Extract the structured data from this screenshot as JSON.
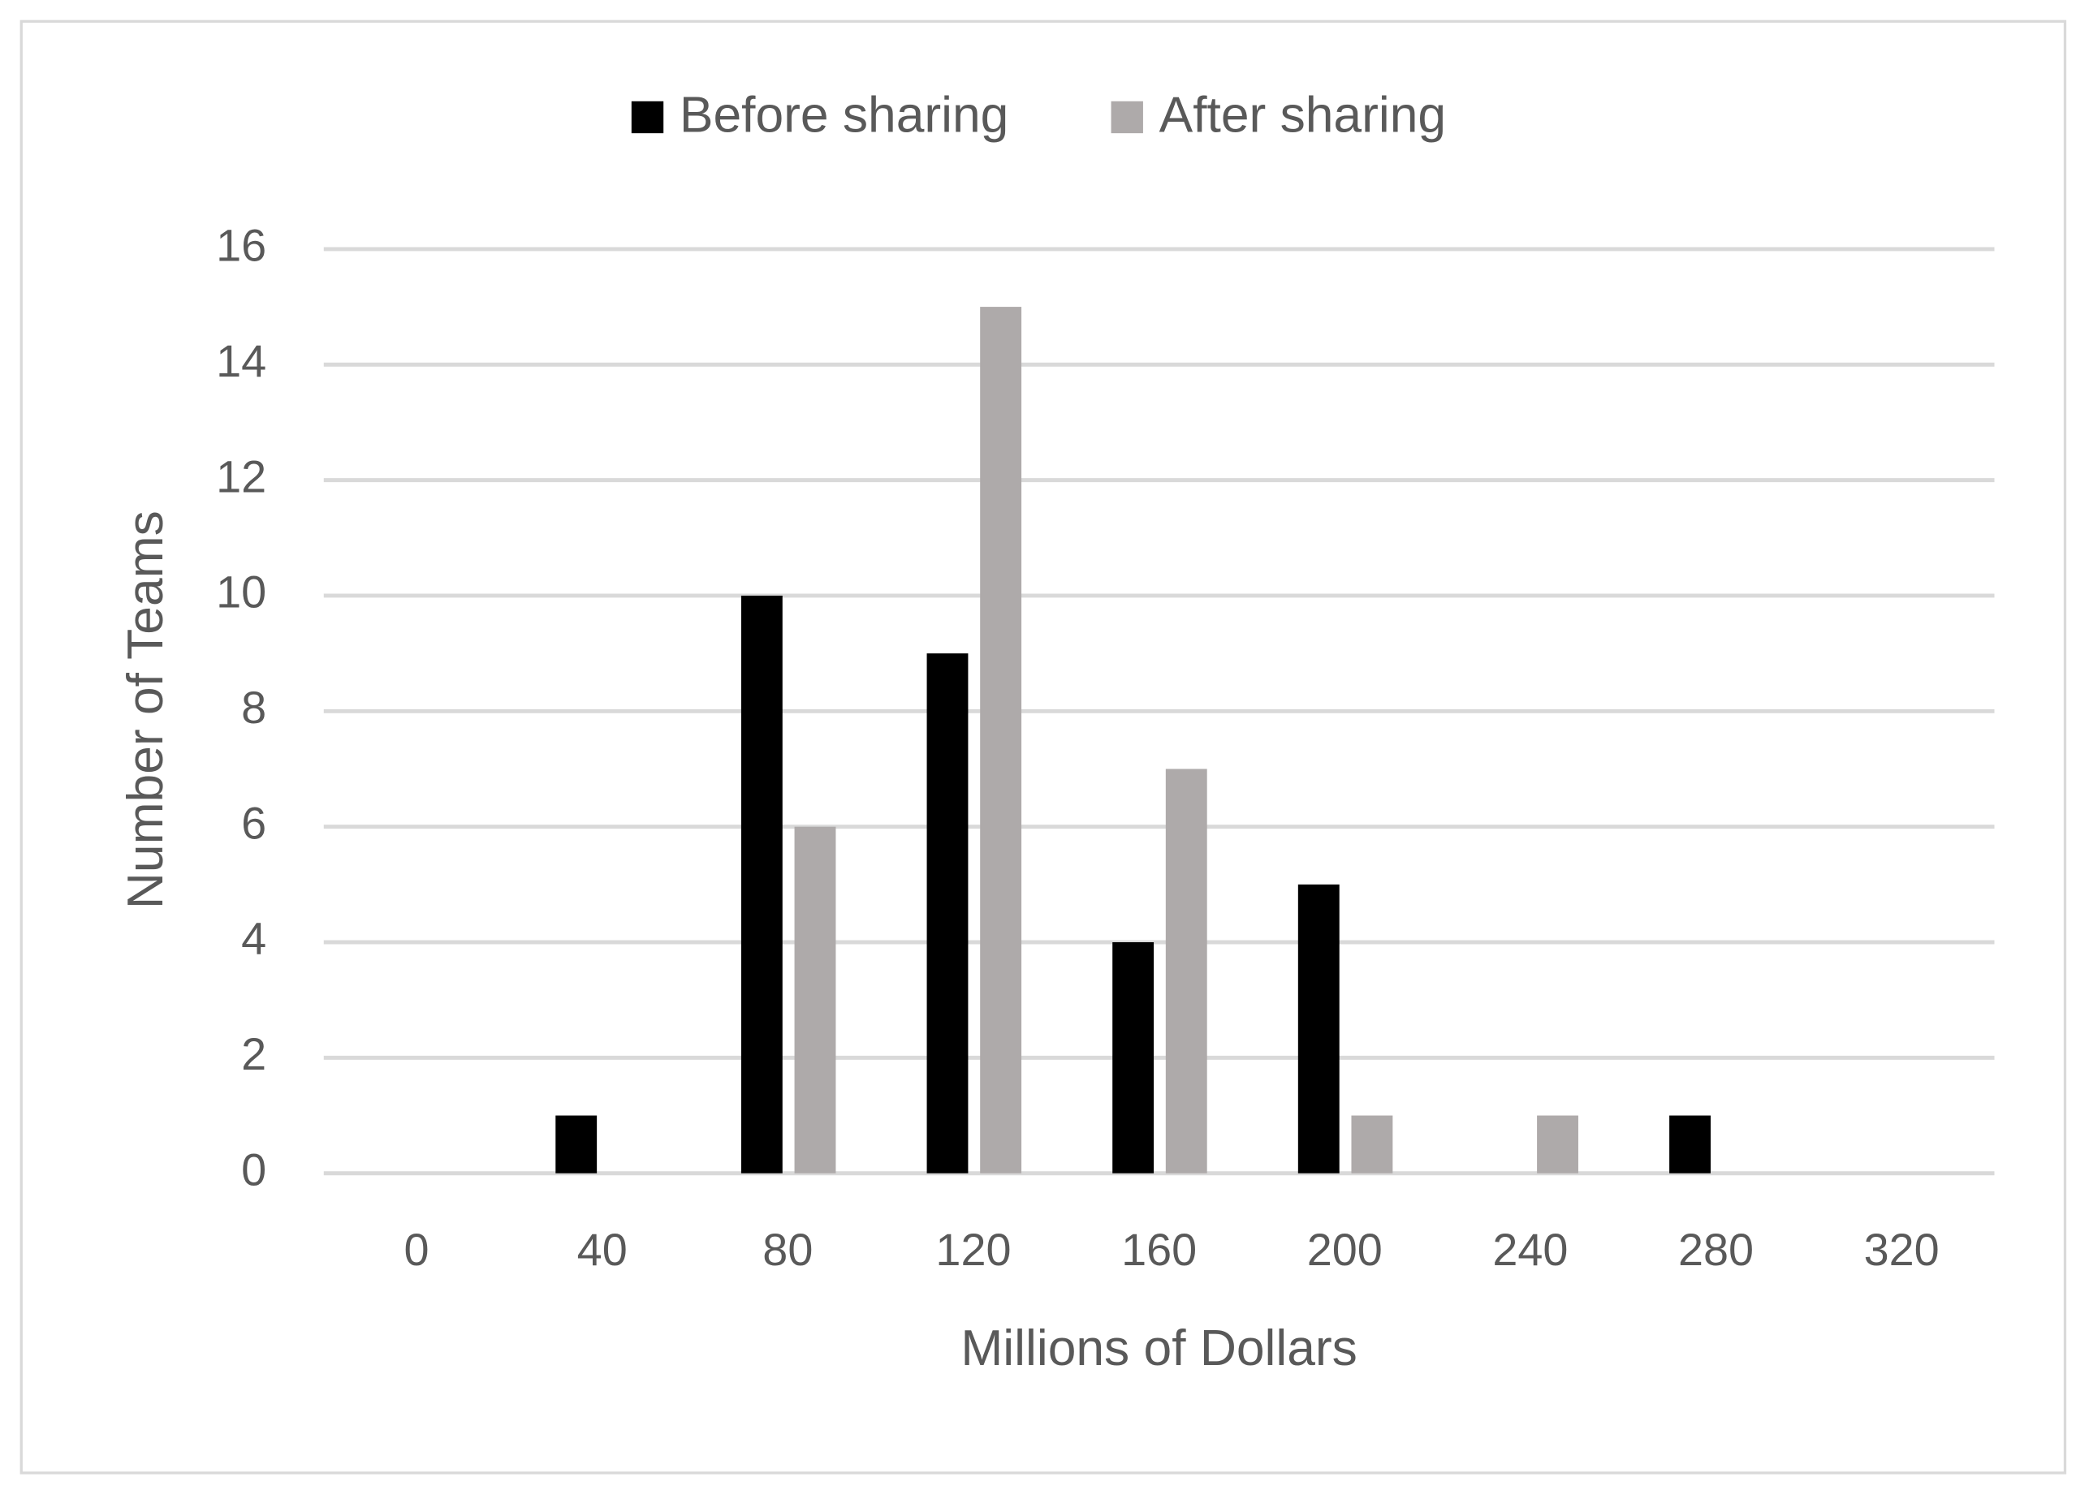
{
  "chart_data": {
    "type": "bar",
    "x_label": "Millions of Dollars",
    "y_label": "Number of Teams",
    "categories": [
      "0",
      "40",
      "80",
      "120",
      "160",
      "200",
      "240",
      "280",
      "320"
    ],
    "series": [
      {
        "name": "Before sharing",
        "color": "#000000",
        "values": [
          0,
          1,
          10,
          9,
          4,
          5,
          0,
          1,
          0
        ]
      },
      {
        "name": "After sharing",
        "color": "#aeaaaa",
        "values": [
          0,
          0,
          6,
          15,
          7,
          1,
          1,
          0,
          0
        ]
      }
    ],
    "ylim": [
      0,
      16
    ],
    "yticks": [
      0,
      2,
      4,
      6,
      8,
      10,
      12,
      14,
      16
    ],
    "grid": true,
    "legend": "top"
  }
}
